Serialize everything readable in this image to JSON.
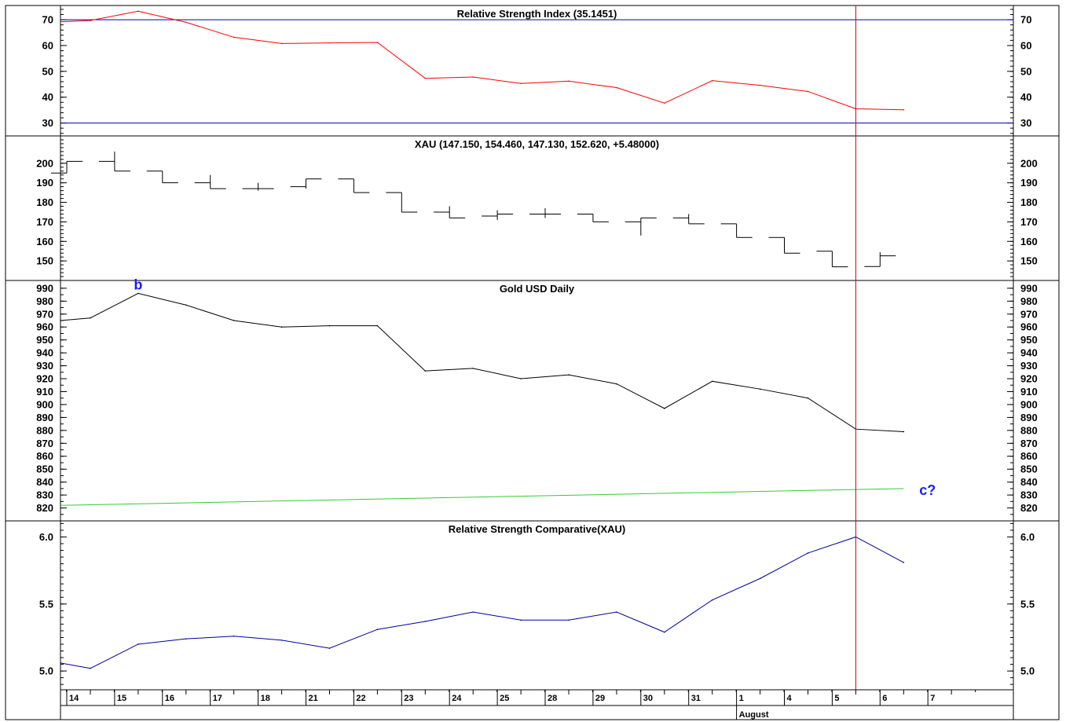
{
  "chart_data": {
    "type": "line",
    "x_labels": [
      "14",
      "15",
      "16",
      "17",
      "18",
      "21",
      "22",
      "23",
      "24",
      "25",
      "28",
      "29",
      "30",
      "31",
      "1",
      "4",
      "5",
      "6",
      "7"
    ],
    "month_label": "August",
    "month_start_index": 14,
    "colors": {
      "rsi": "#ff0000",
      "levels": "#0000aa",
      "gold": "#000000",
      "trend": "#33cc33",
      "rsc": "#000099",
      "cursor": "#cc0000",
      "annotation": "#1a1aff"
    },
    "panels": [
      {
        "id": "rsi",
        "type": "line",
        "title": "Relative Strength Index (35.1451)",
        "ylim": [
          25,
          75.5
        ],
        "y_ticks": [
          70,
          60,
          50,
          40,
          30
        ],
        "minor_step": 2,
        "x": [
          -0.5,
          0,
          1,
          2,
          3,
          4,
          5,
          6,
          7,
          8,
          9,
          10,
          11,
          12,
          13,
          14,
          15,
          16,
          17
        ],
        "values": [
          69.2,
          69.7,
          73.3,
          69.0,
          63.2,
          60.8,
          61.0,
          61.2,
          47.3,
          47.8,
          45.3,
          46.2,
          43.7,
          37.7,
          46.4,
          44.6,
          42.2,
          35.5,
          35.1
        ],
        "reference_lines": [
          70,
          30
        ]
      },
      {
        "id": "xau",
        "type": "ohlc",
        "title": "XAU (147.150, 154.460, 147.130, 152.620, +5.48000)",
        "ylim": [
          140,
          214
        ],
        "y_ticks": [
          200,
          190,
          180,
          170,
          160,
          150
        ],
        "minor_step": 2,
        "ohlc": [
          {
            "x": 0,
            "open": 195,
            "high": 201,
            "low": 195,
            "close": 201
          },
          {
            "x": 1,
            "open": 201,
            "high": 206,
            "low": 196,
            "close": 196
          },
          {
            "x": 2,
            "open": 196,
            "high": 196,
            "low": 190,
            "close": 190
          },
          {
            "x": 3,
            "open": 190,
            "high": 194,
            "low": 187,
            "close": 187
          },
          {
            "x": 4,
            "open": 187,
            "high": 190,
            "low": 186,
            "close": 187
          },
          {
            "x": 5,
            "open": 188,
            "high": 192,
            "low": 187,
            "close": 192
          },
          {
            "x": 6,
            "open": 192,
            "high": 192,
            "low": 185,
            "close": 185
          },
          {
            "x": 7,
            "open": 185,
            "high": 185,
            "low": 175,
            "close": 175
          },
          {
            "x": 8,
            "open": 175,
            "high": 178,
            "low": 172,
            "close": 172
          },
          {
            "x": 9,
            "open": 173,
            "high": 176,
            "low": 171,
            "close": 174
          },
          {
            "x": 10,
            "open": 174,
            "high": 177,
            "low": 172,
            "close": 174
          },
          {
            "x": 11,
            "open": 174,
            "high": 174,
            "low": 170,
            "close": 170
          },
          {
            "x": 12,
            "open": 170,
            "high": 172,
            "low": 163,
            "close": 172
          },
          {
            "x": 13,
            "open": 172,
            "high": 174,
            "low": 169,
            "close": 169
          },
          {
            "x": 14,
            "open": 169,
            "high": 169,
            "low": 162,
            "close": 162
          },
          {
            "x": 15,
            "open": 162,
            "high": 162,
            "low": 154,
            "close": 154
          },
          {
            "x": 16,
            "open": 155,
            "high": 155,
            "low": 147,
            "close": 147
          },
          {
            "x": 17,
            "open": 147.15,
            "high": 154.46,
            "low": 147.13,
            "close": 152.62
          }
        ]
      },
      {
        "id": "gold",
        "type": "line",
        "title": "Gold USD Daily",
        "ylim": [
          810,
          996
        ],
        "y_ticks": [
          990,
          980,
          970,
          960,
          950,
          940,
          930,
          920,
          910,
          900,
          890,
          880,
          870,
          860,
          850,
          840,
          830,
          820
        ],
        "minor_step": 5,
        "x": [
          -0.5,
          0,
          1,
          2,
          3,
          4,
          5,
          6,
          7,
          8,
          9,
          10,
          11,
          12,
          13,
          14,
          15,
          16,
          17
        ],
        "values": [
          965,
          967,
          986,
          977,
          965,
          960,
          961,
          961,
          926,
          928,
          920,
          923,
          916,
          897,
          918,
          912,
          905,
          881,
          879
        ],
        "trend": {
          "x": [
            -0.5,
            17
          ],
          "values": [
            822,
            835
          ]
        },
        "annotations": [
          {
            "text": "b",
            "x": 1,
            "y": 989
          },
          {
            "text": "c?",
            "x": 17.5,
            "y": 830
          }
        ]
      },
      {
        "id": "rsc",
        "type": "line",
        "title": "Relative Strength Comparative(XAU)",
        "ylim": [
          4.86,
          6.12
        ],
        "y_ticks": [
          6.0,
          5.5,
          5.0
        ],
        "minor_step": 0.05,
        "x": [
          -0.5,
          0,
          1,
          2,
          3,
          4,
          5,
          6,
          7,
          8,
          9,
          10,
          11,
          12,
          13,
          14,
          15,
          16,
          17
        ],
        "values": [
          5.06,
          5.02,
          5.2,
          5.24,
          5.26,
          5.23,
          5.17,
          5.31,
          5.37,
          5.44,
          5.38,
          5.38,
          5.44,
          5.29,
          5.53,
          5.69,
          5.88,
          6.0,
          5.81
        ]
      }
    ],
    "cursor_x": 16
  }
}
